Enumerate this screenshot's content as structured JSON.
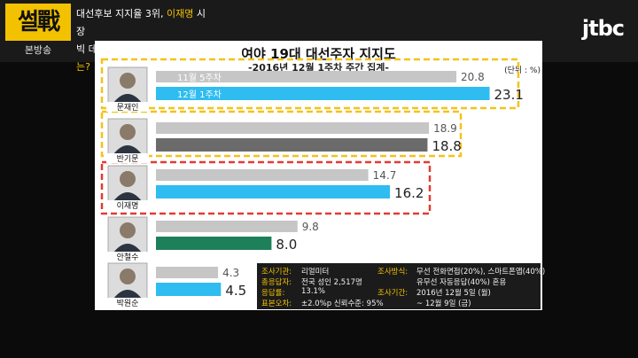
{
  "header": {
    "logo_text": "썰戰",
    "logo_sub": "본방송",
    "headline_line1_prefix": "대선후보 지지율 3위, ",
    "headline_line1_highlight": "이재명",
    "headline_line1_suffix": " 시장",
    "headline_line2_prefix": "빅 데이터를 통해 본 ",
    "headline_line2_highlight": "그의 미래는?",
    "brand": "jtbc"
  },
  "colors": {
    "current_bar": "#2fbcf0",
    "current_bar_ban": "#6b6b6b",
    "current_bar_ahn": "#1e7f5b",
    "prev_bar": "#c6c6c6",
    "dashed_yellow": "#f5c21a",
    "dashed_red": "#e23b32"
  },
  "chart_data": {
    "type": "bar",
    "title": "여야 19대 대선주자 지지도",
    "subtitle": "-2016년 12월 1주차 주간 집계-",
    "unit": "(단위 : %)",
    "orientation": "horizontal",
    "categories": [
      "문재인",
      "반기문",
      "이재명",
      "안철수",
      "박원순"
    ],
    "series": [
      {
        "name": "11월 5주차",
        "values": [
          20.8,
          18.9,
          14.7,
          9.8,
          4.3
        ]
      },
      {
        "name": "12월 1주차",
        "values": [
          23.1,
          18.8,
          16.2,
          8.0,
          4.5
        ]
      }
    ],
    "xlim": [
      0,
      25
    ],
    "grid": false
  },
  "footer": {
    "lines": [
      {
        "label": "조사기관:",
        "value": "리얼미터",
        "label2": "조사방식:",
        "value2": "무선 전화면접(20%), 스마트폰앱(40%)"
      },
      {
        "label": "총응답자:",
        "value": "전국 성인 2,517명",
        "label2": "",
        "value2": "유무선 자동응답(40%) 혼용"
      },
      {
        "label": "응답률:",
        "value": "13.1%",
        "label2": "조사기간:",
        "value2": "2016년 12월 5일 (월)"
      },
      {
        "label": "표본오차:",
        "value": "±2.0%p 신뢰수준: 95%",
        "label2": "",
        "value2": "~ 12월 9일 (금)"
      }
    ]
  }
}
